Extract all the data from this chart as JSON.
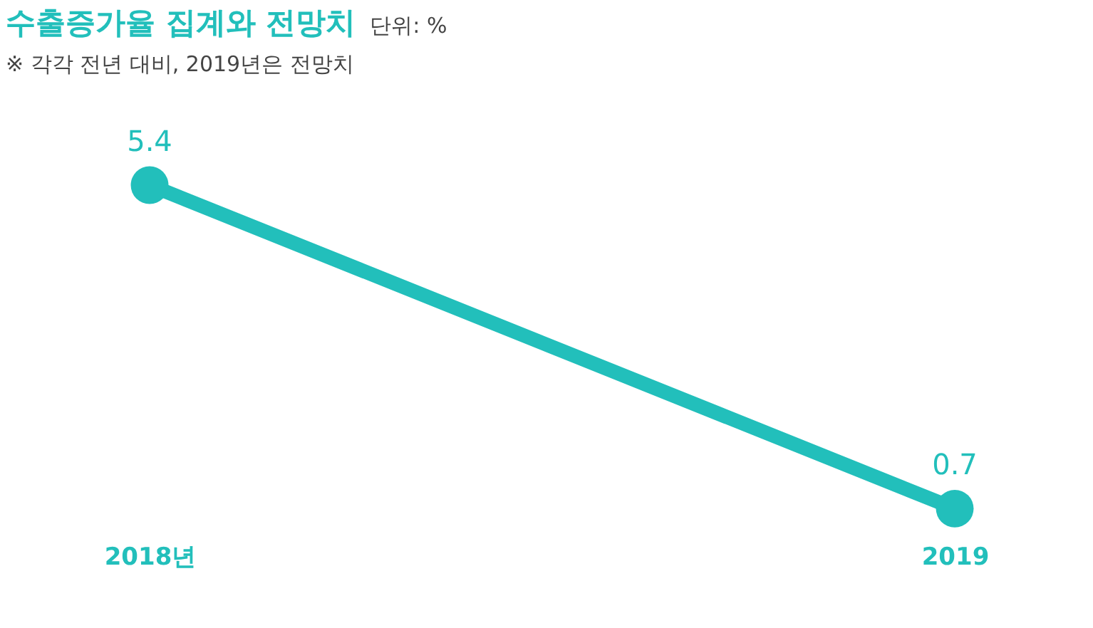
{
  "chart_data": {
    "type": "line",
    "title": "수출증가율 집계와 전망치",
    "subtitle": "※ 각각 전년 대비, 2019년은 전망치",
    "annotations": [
      "단위: %"
    ],
    "categories": [
      "2018년",
      "2019"
    ],
    "values": [
      5.4,
      0.7
    ],
    "color": "#22bfbb",
    "data_labels": true,
    "marker": "circle",
    "line_style": "solid"
  }
}
